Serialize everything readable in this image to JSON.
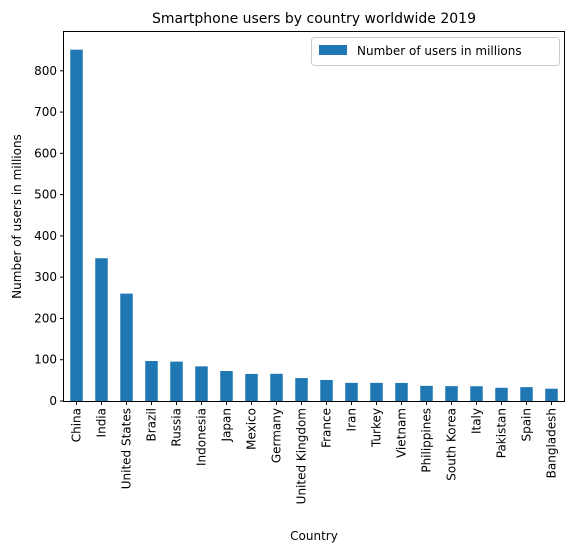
{
  "chart_data": {
    "type": "bar",
    "title": "Smartphone users by country worldwide 2019",
    "xlabel": "Country",
    "ylabel": "Number of users in millions",
    "categories": [
      "China",
      "India",
      "United States",
      "Brazil",
      "Russia",
      "Indonesia",
      "Japan",
      "Mexico",
      "Germany",
      "United Kingdom",
      "France",
      "Iran",
      "Turkey",
      "Vietnam",
      "Philippines",
      "South Korea",
      "Italy",
      "Pakistan",
      "Spain",
      "Bangladesh"
    ],
    "series": [
      {
        "name": "Number of users in millions",
        "color": "#1f77b4",
        "values": [
          851.2,
          345.9,
          260.2,
          96.9,
          95.4,
          83.9,
          72.6,
          65.6,
          65.9,
          55.5,
          51.0,
          44.0,
          44.0,
          43.7,
          36.7,
          36.0,
          35.7,
          32.0,
          33.6,
          29.8
        ]
      }
    ],
    "ylim": [
      0,
      894
    ],
    "yticks": [
      0,
      100,
      200,
      300,
      400,
      500,
      600,
      700,
      800
    ],
    "grid": false,
    "legend_position": "top-right"
  }
}
